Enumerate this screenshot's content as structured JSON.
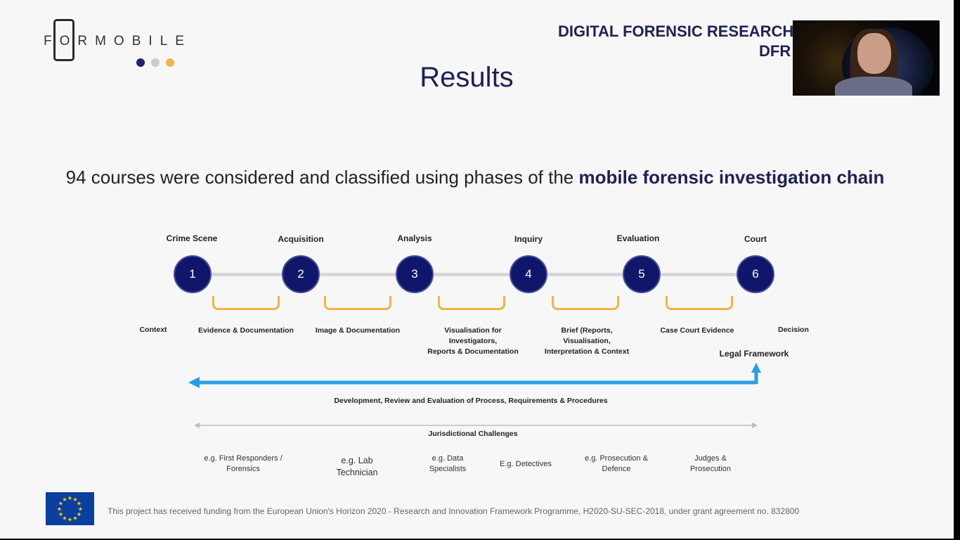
{
  "logo": {
    "text": "FORMOBILE",
    "dot_colors": [
      "#1c2470",
      "#c8cbd2",
      "#f1b447"
    ]
  },
  "organization": {
    "line1": "DIGITAL FORENSIC RESEARCH",
    "line2": "DFR"
  },
  "slide_title": "Results",
  "subtitle": {
    "prefix": "94 courses were considered and classified using phases of the ",
    "bold": "mobile forensic investigation chain"
  },
  "phases": [
    {
      "label": "Crime Scene",
      "number": "1"
    },
    {
      "label": "Acquisition",
      "number": "2"
    },
    {
      "label": "Analysis",
      "number": "3"
    },
    {
      "label": "Inquiry",
      "number": "4"
    },
    {
      "label": "Evaluation",
      "number": "5"
    },
    {
      "label": "Court",
      "number": "6"
    }
  ],
  "side_labels": {
    "start": "Context",
    "end": "Decision"
  },
  "outputs": [
    "Evidence & Documentation",
    "Image & Documentation",
    "Visualisation for\nInvestigators,\nReports & Documentation",
    "Brief (Reports,\nVisualisation,\nInterpretation & Context",
    "Case Court Evidence"
  ],
  "legal_framework": "Legal Framework",
  "process_label": "Development, Review and Evaluation of Process, Requirements & Procedures",
  "jurisdiction_label": "Jurisdictional Challenges",
  "roles": [
    "e.g. First Responders /\nForensics",
    "e.g. Lab\nTechnician",
    "e.g. Data\nSpecialists",
    "E.g. Detectives",
    "e.g. Prosecution &\nDefence",
    "Judges &\nProsecution"
  ],
  "funding_text": "This project has received funding from the European Union's Horizon 2020 - Research and Innovation Framework Programme, H2020-SU-SEC-2018, under grant agreement no. 832800",
  "colors": {
    "navy": "#1e2155",
    "node": "#10176a",
    "accent_orange": "#f1b447",
    "arrow_blue": "#2a9de6",
    "eu_blue": "#0a3fa0",
    "eu_star": "#ffd400"
  }
}
